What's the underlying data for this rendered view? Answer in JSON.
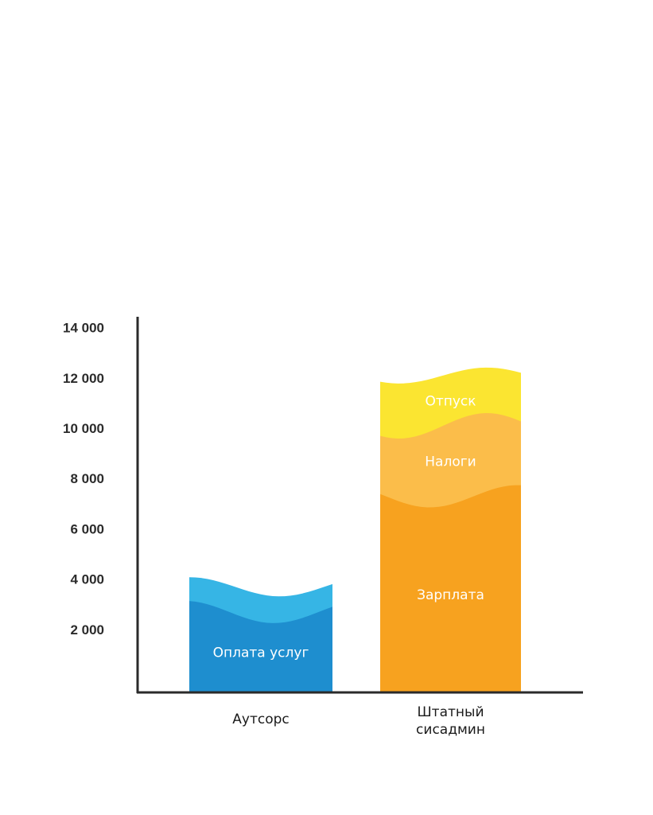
{
  "chart_data": {
    "type": "bar",
    "stacked": true,
    "categories": [
      "Аутсорс",
      "Штатный сисадмин"
    ],
    "ylim": [
      0,
      14000
    ],
    "yticks": [
      2000,
      4000,
      6000,
      8000,
      10000,
      12000,
      14000
    ],
    "ytick_labels": [
      "2 000",
      "4 000",
      "6 000",
      "8 000",
      "10 000",
      "12 000",
      "14 000"
    ],
    "grid": true,
    "bars": [
      {
        "category_label_lines": [
          "Аутсорс"
        ],
        "segments": [
          {
            "name": "Оплата услуг",
            "value": 3200,
            "color": "#1e8ecf",
            "label": "Оплата услуг"
          },
          {
            "name": "",
            "value": 1000,
            "color": "#36b5e5",
            "label": ""
          }
        ]
      },
      {
        "category_label_lines": [
          "Штатный",
          "сисадмин"
        ],
        "segments": [
          {
            "name": "Зарплата",
            "value": 7800,
            "color": "#f7a21f",
            "label": "Зарплата"
          },
          {
            "name": "Налоги",
            "value": 2800,
            "color": "#fbbd4a",
            "label": "Налоги"
          },
          {
            "name": "Отпуск",
            "value": 2000,
            "color": "#fbe531",
            "label": "Отпуск",
            "label_color": "#ee3a24"
          }
        ]
      }
    ]
  }
}
